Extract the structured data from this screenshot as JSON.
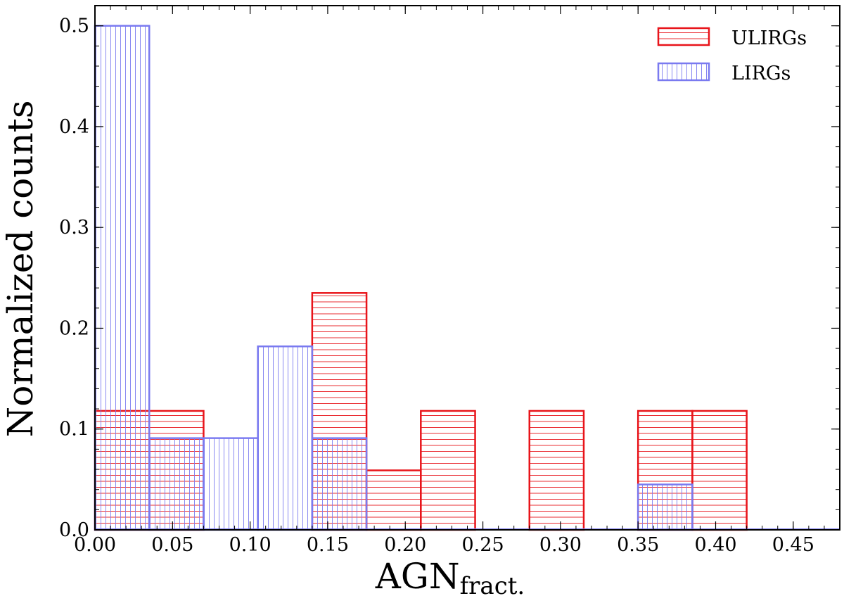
{
  "chart_data": {
    "type": "bar",
    "subtype": "histogram-step",
    "xlabel_main": "AGN",
    "xlabel_sub": "fract.",
    "ylabel": "Normalized counts",
    "xlim": [
      0,
      0.48
    ],
    "ylim": [
      0,
      0.52
    ],
    "xticks": [
      0.0,
      0.05,
      0.1,
      0.15,
      0.2,
      0.25,
      0.3,
      0.35,
      0.4,
      0.45
    ],
    "xtick_labels": [
      "0.00",
      "0.05",
      "0.10",
      "0.15",
      "0.20",
      "0.25",
      "0.30",
      "0.35",
      "0.40",
      "0.45"
    ],
    "yticks": [
      0.0,
      0.1,
      0.2,
      0.3,
      0.4,
      0.5
    ],
    "ytick_labels": [
      "0.0",
      "0.1",
      "0.2",
      "0.3",
      "0.4",
      "0.5"
    ],
    "bin_edges": [
      0.0,
      0.035,
      0.07,
      0.105,
      0.14,
      0.175,
      0.21,
      0.245,
      0.28,
      0.315,
      0.35,
      0.385,
      0.42
    ],
    "legend_position": "top-right",
    "series": [
      {
        "name": "ULIRGs",
        "color": "#e8141a",
        "hatch": "horizontal",
        "values": [
          0.118,
          0.118,
          0.0,
          0.0,
          0.235,
          0.059,
          0.118,
          0.0,
          0.118,
          0.0,
          0.118,
          0.118
        ]
      },
      {
        "name": "LIRGs",
        "color": "#7a7af0",
        "hatch": "vertical",
        "values": [
          0.5,
          0.091,
          0.091,
          0.182,
          0.091,
          0.0,
          0.0,
          0.0,
          0.0,
          0.0,
          0.045,
          0.0
        ]
      }
    ]
  }
}
